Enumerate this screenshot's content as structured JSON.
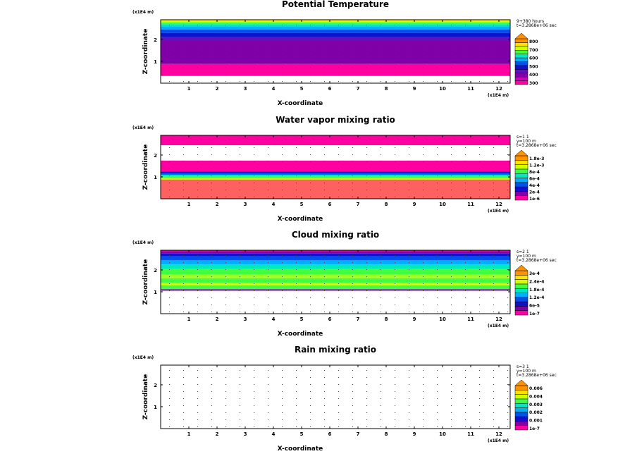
{
  "chart_data": [
    {
      "type": "heatmap",
      "title": "Potential Temperature",
      "xlabel": "X-coordinate",
      "ylabel": "Z-coordinate",
      "x_unit": "(x1E4 m)",
      "z_unit": "(x1E4 m)",
      "xlim": [
        0,
        12.4
      ],
      "ylim": [
        0,
        2.9
      ],
      "x_ticks": [
        "1",
        "2",
        "3",
        "4",
        "5",
        "6",
        "7",
        "8",
        "9",
        "10",
        "11",
        "12"
      ],
      "y_ticks": [
        "1",
        "2"
      ],
      "info": [
        "9+380 hours",
        "t=3.2868e+06 sec"
      ],
      "levels": [
        "800",
        "700",
        "600",
        "500",
        "400",
        "300"
      ],
      "palette": [
        "#ff00a0",
        "#d000c0",
        "#8000a8",
        "#6010c0",
        "#1010d0",
        "#0050f0",
        "#00b0ff",
        "#00e8c0",
        "#40ff40",
        "#d0ff00",
        "#ffe000",
        "#ff9000"
      ],
      "bands": [
        {
          "z0": 0.0,
          "z1": 0.33,
          "color": "#ffffff"
        },
        {
          "z0": 0.33,
          "z1": 0.88,
          "color": "#ff00a0"
        },
        {
          "z0": 0.88,
          "z1": 1.95,
          "color": "#8000a8"
        },
        {
          "z0": 1.95,
          "z1": 2.1,
          "color": "#6010c0"
        },
        {
          "z0": 2.1,
          "z1": 2.3,
          "color": "#1010d0"
        },
        {
          "z0": 2.3,
          "z1": 2.45,
          "color": "#0050f0"
        },
        {
          "z0": 2.45,
          "z1": 2.6,
          "color": "#00b0ff"
        },
        {
          "z0": 2.6,
          "z1": 2.7,
          "color": "#00e8c0"
        },
        {
          "z0": 2.7,
          "z1": 2.78,
          "color": "#40ff40"
        },
        {
          "z0": 2.78,
          "z1": 2.84,
          "color": "#d0ff00"
        },
        {
          "z0": 2.84,
          "z1": 2.9,
          "color": "#ffe000"
        }
      ]
    },
    {
      "type": "heatmap",
      "title": "Water vapor mixing ratio",
      "xlabel": "X-coordinate",
      "ylabel": "Z-coordinate",
      "x_unit": "(x1E4 m)",
      "z_unit": "(x1E4 m)",
      "xlim": [
        0,
        12.4
      ],
      "ylim": [
        0,
        2.9
      ],
      "x_ticks": [
        "1",
        "2",
        "3",
        "4",
        "5",
        "6",
        "7",
        "8",
        "9",
        "10",
        "11",
        "12"
      ],
      "y_ticks": [
        "1",
        "2"
      ],
      "info": [
        "s=1 1",
        "y=100 m",
        "t=3.2868e+06 sec"
      ],
      "levels": [
        "1.8e-3",
        "1.2e-3",
        "8e-4",
        "6e-4",
        "4e-4",
        "2e-4",
        "1e-6"
      ],
      "palette": [
        "#ff00a0",
        "#8000a8",
        "#1010d0",
        "#0050f0",
        "#00b0ff",
        "#00e8c0",
        "#40ff40",
        "#d0ff00",
        "#ffe000",
        "#ff9000"
      ],
      "bands": [
        {
          "z0": 0.0,
          "z1": 0.88,
          "color": "#ff6060"
        },
        {
          "z0": 0.88,
          "z1": 0.95,
          "color": "#d0ff00"
        },
        {
          "z0": 0.95,
          "z1": 1.02,
          "color": "#40ff40"
        },
        {
          "z0": 1.02,
          "z1": 1.1,
          "color": "#00e8c0"
        },
        {
          "z0": 1.1,
          "z1": 1.18,
          "color": "#0050f0"
        },
        {
          "z0": 1.18,
          "z1": 1.25,
          "color": "#1010d0"
        },
        {
          "z0": 1.25,
          "z1": 1.75,
          "color": "#ff00a0"
        },
        {
          "z0": 1.75,
          "z1": 2.45,
          "color": "#ffffff"
        },
        {
          "z0": 2.45,
          "z1": 2.9,
          "color": "#ff00a0"
        }
      ]
    },
    {
      "type": "heatmap",
      "title": "Cloud mixing ratio",
      "xlabel": "X-coordinate",
      "ylabel": "Z-coordinate",
      "x_unit": "(x1E4 m)",
      "z_unit": "(x1E4 m)",
      "xlim": [
        0,
        12.4
      ],
      "ylim": [
        0,
        2.9
      ],
      "x_ticks": [
        "1",
        "2",
        "3",
        "4",
        "5",
        "6",
        "7",
        "8",
        "9",
        "10",
        "11",
        "12"
      ],
      "y_ticks": [
        "1",
        "2"
      ],
      "info": [
        "s=2 1",
        "y=100 m",
        "t=3.2868e+06 sec"
      ],
      "levels": [
        "3e-4",
        "2.4e-4",
        "1.8e-4",
        "1.2e-4",
        "6e-5",
        "1e-7"
      ],
      "palette": [
        "#ff00a0",
        "#8000a8",
        "#1010d0",
        "#0050f0",
        "#00b0ff",
        "#00e8c0",
        "#40ff40",
        "#d0ff00",
        "#ffe000",
        "#ff9000"
      ],
      "bands": [
        {
          "z0": 0.0,
          "z1": 1.05,
          "color": "#ffffff"
        },
        {
          "z0": 1.05,
          "z1": 1.12,
          "color": "#8000a8"
        },
        {
          "z0": 1.12,
          "z1": 1.3,
          "color": "#40ff40"
        },
        {
          "z0": 1.3,
          "z1": 1.42,
          "color": "#d0ff00"
        },
        {
          "z0": 1.42,
          "z1": 1.62,
          "color": "#40ff40"
        },
        {
          "z0": 1.62,
          "z1": 1.8,
          "color": "#a0ff20"
        },
        {
          "z0": 1.8,
          "z1": 2.05,
          "color": "#40ff40"
        },
        {
          "z0": 2.05,
          "z1": 2.25,
          "color": "#00e8c0"
        },
        {
          "z0": 2.25,
          "z1": 2.45,
          "color": "#00b0ff"
        },
        {
          "z0": 2.45,
          "z1": 2.62,
          "color": "#0050f0"
        },
        {
          "z0": 2.62,
          "z1": 2.75,
          "color": "#1010d0"
        },
        {
          "z0": 2.75,
          "z1": 2.85,
          "color": "#8000a8"
        },
        {
          "z0": 2.85,
          "z1": 2.9,
          "color": "#ff00a0"
        }
      ]
    },
    {
      "type": "heatmap",
      "title": "Rain mixing ratio",
      "xlabel": "X-coordinate",
      "ylabel": "Z-coordinate",
      "x_unit": "(x1E4 m)",
      "z_unit": "(x1E4 m)",
      "xlim": [
        0,
        12.4
      ],
      "ylim": [
        0,
        2.9
      ],
      "x_ticks": [
        "1",
        "2",
        "3",
        "4",
        "5",
        "6",
        "7",
        "8",
        "9",
        "10",
        "11",
        "12"
      ],
      "y_ticks": [
        "1",
        "2"
      ],
      "info": [
        "s=3 1",
        "y=100 m",
        "t=3.2868e+06 sec"
      ],
      "levels": [
        "0.006",
        "0.004",
        "0.003",
        "0.002",
        "0.001",
        "1e-7"
      ],
      "palette": [
        "#ff00a0",
        "#8000a8",
        "#1010d0",
        "#0050f0",
        "#00b0ff",
        "#00e8c0",
        "#40ff40",
        "#d0ff00",
        "#ffe000",
        "#ff9000"
      ],
      "bands": []
    }
  ]
}
